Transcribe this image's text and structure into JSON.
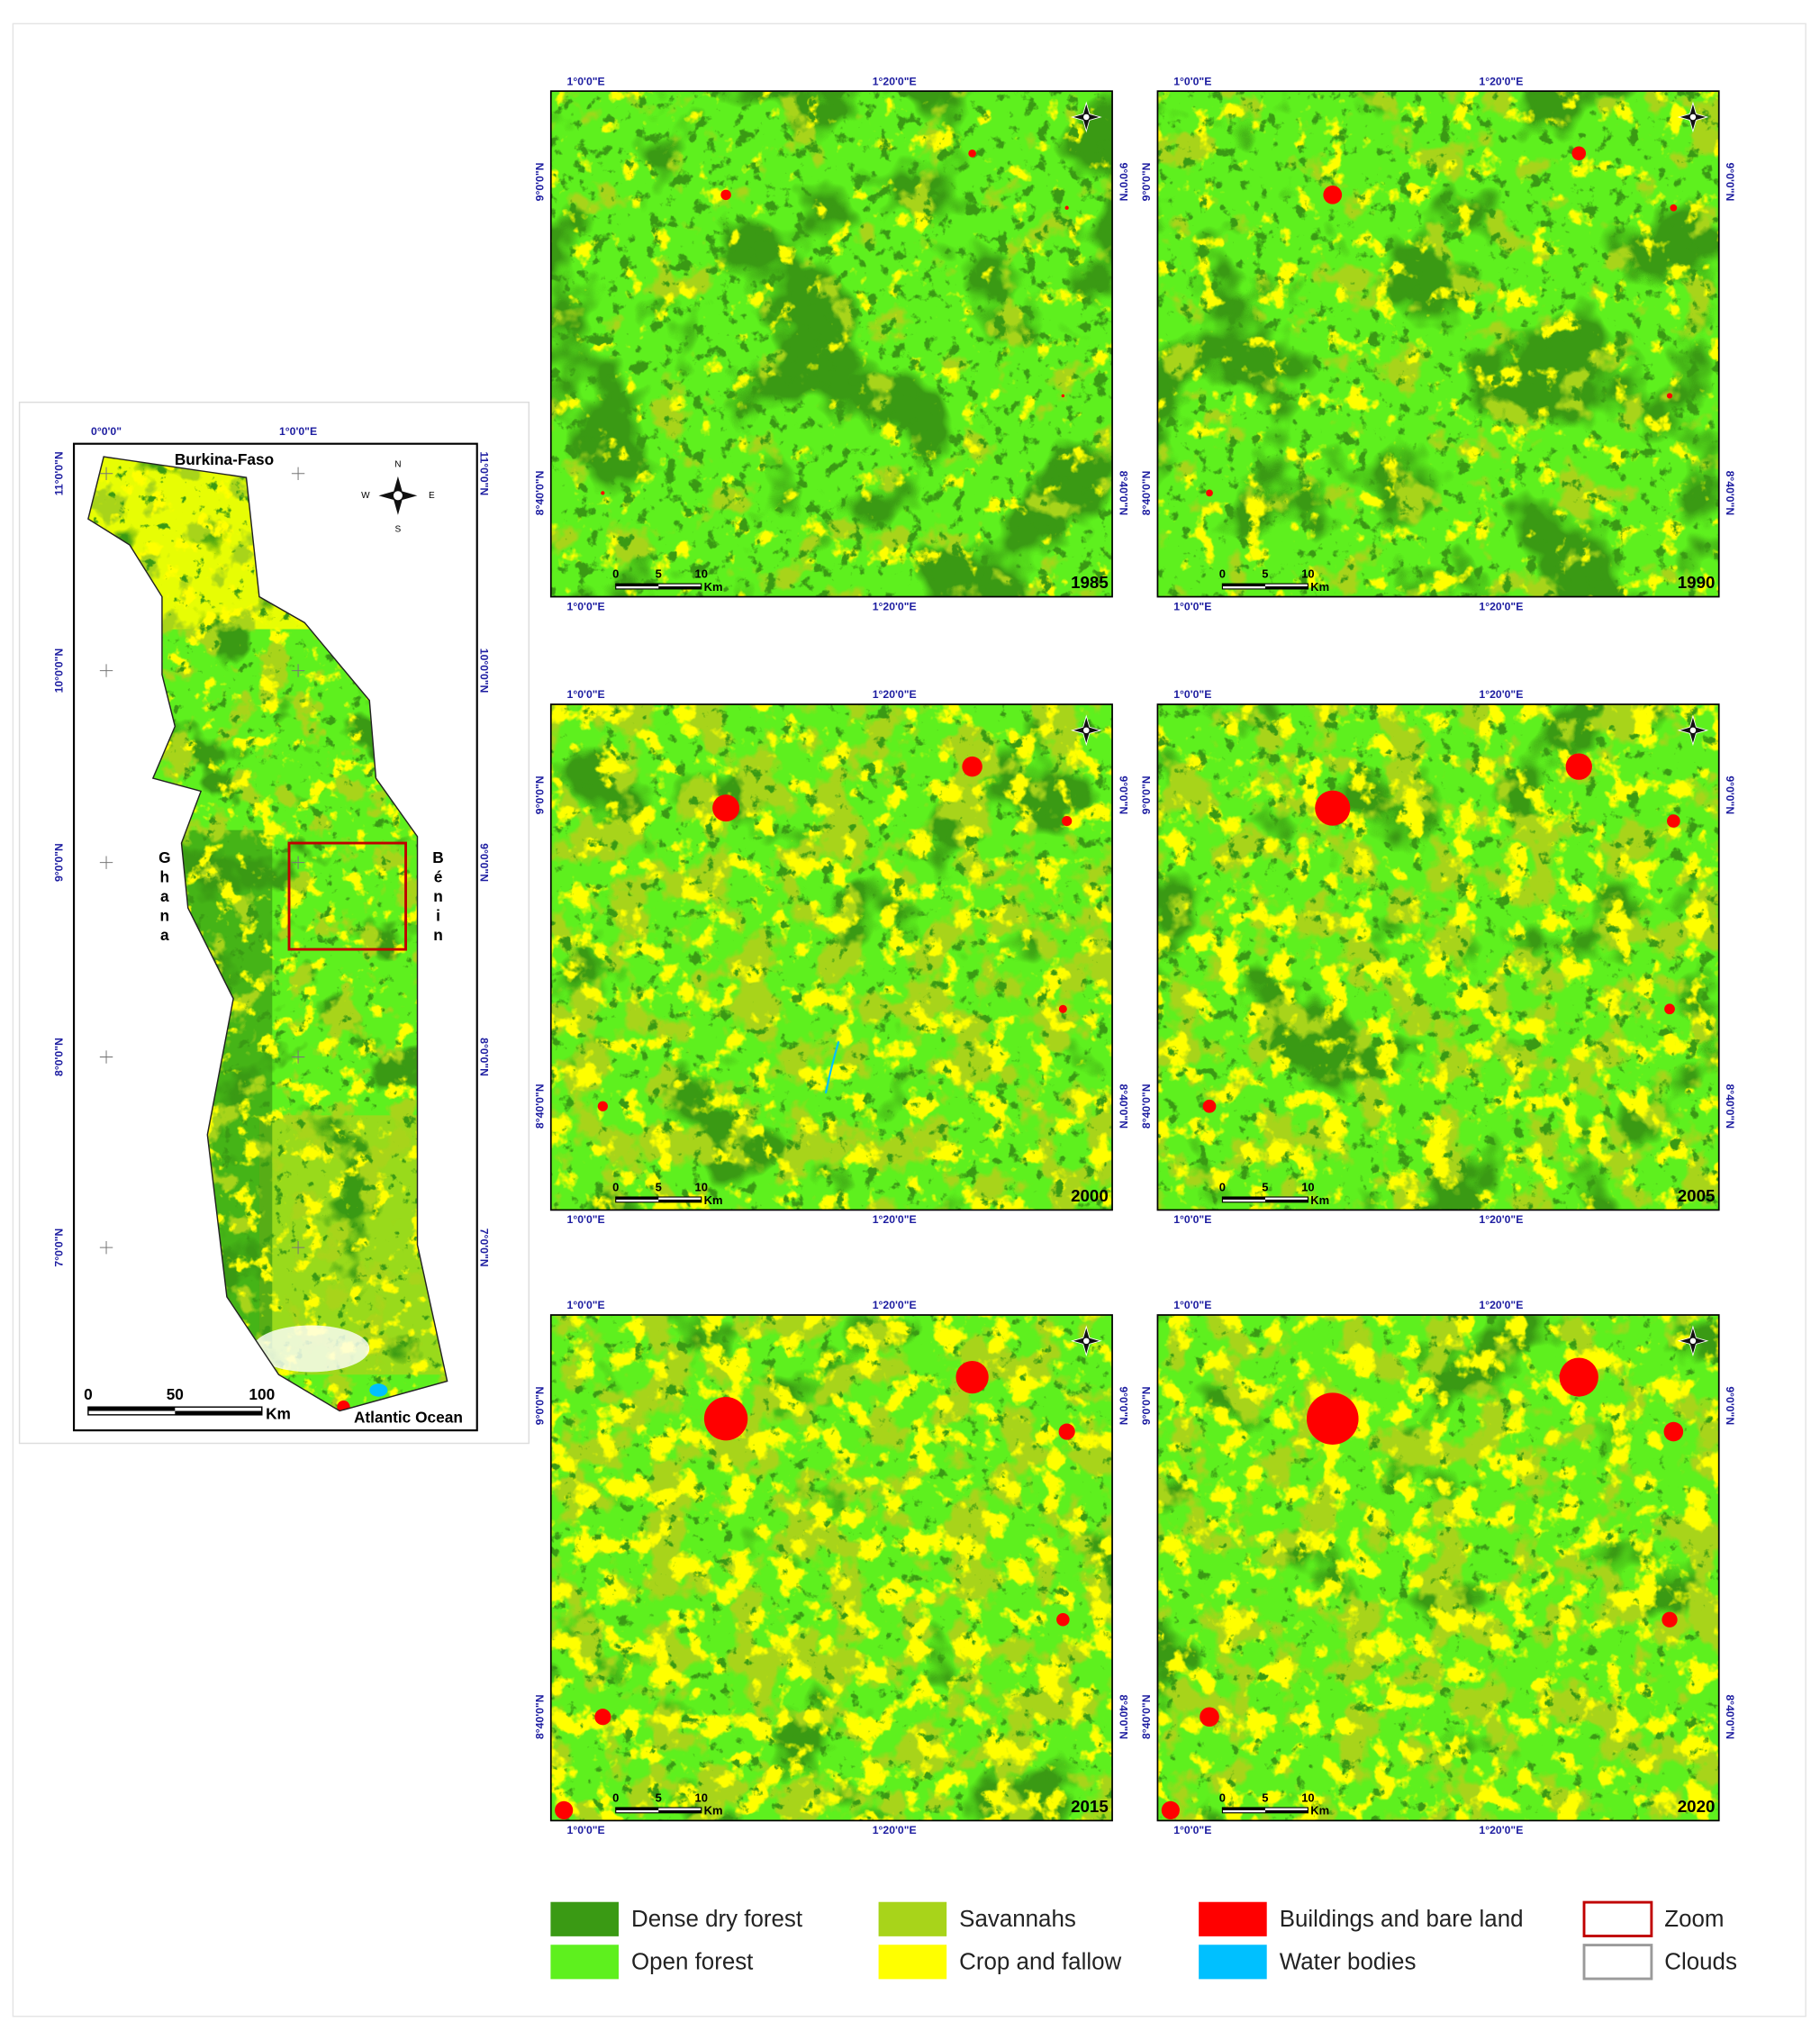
{
  "overview": {
    "lon_labels": [
      "0°0'0\"",
      "1°0'0\"E"
    ],
    "lat_labels": [
      "11°0'0\"N",
      "10°0'0\"N",
      "9°0'0\"N",
      "8°0'0\"N",
      "7°0'0\"N"
    ],
    "north_country": "Burkina-Faso",
    "west_country": "Ghana",
    "east_country": "Bénin",
    "ocean": "Atlantic Ocean",
    "scale_labels": [
      "0",
      "50",
      "100"
    ],
    "scale_unit": "Km",
    "compass": [
      "N",
      "E",
      "S",
      "W"
    ]
  },
  "panel_axes": {
    "lon_labels": [
      "1°0'0\"E",
      "1°20'0\"E"
    ],
    "lat_labels": [
      "9°0'0\"N",
      "8°40'0\"N"
    ],
    "scale_labels": [
      "0",
      "5",
      "10"
    ],
    "scale_unit": "Km"
  },
  "panels": [
    {
      "year": "1985"
    },
    {
      "year": "1990"
    },
    {
      "year": "2000"
    },
    {
      "year": "2005"
    },
    {
      "year": "2015"
    },
    {
      "year": "2020"
    }
  ],
  "legend": [
    {
      "label": "Dense dry forest",
      "color": "#3a9a14",
      "swatch": "fill"
    },
    {
      "label": "Open forest",
      "color": "#5ef01e",
      "swatch": "fill"
    },
    {
      "label": "Savannahs",
      "color": "#a8d41a",
      "swatch": "fill"
    },
    {
      "label": "Crop and fallow",
      "color": "#ffff00",
      "swatch": "fill"
    },
    {
      "label": "Buildings and bare land",
      "color": "#ff0000",
      "swatch": "fill"
    },
    {
      "label": "Water bodies",
      "color": "#00c0ff",
      "swatch": "fill"
    },
    {
      "label": "Zoom",
      "color": "#c00000",
      "swatch": "outline"
    },
    {
      "label": "Clouds",
      "color": "#9a9a9a",
      "swatch": "outline"
    }
  ]
}
